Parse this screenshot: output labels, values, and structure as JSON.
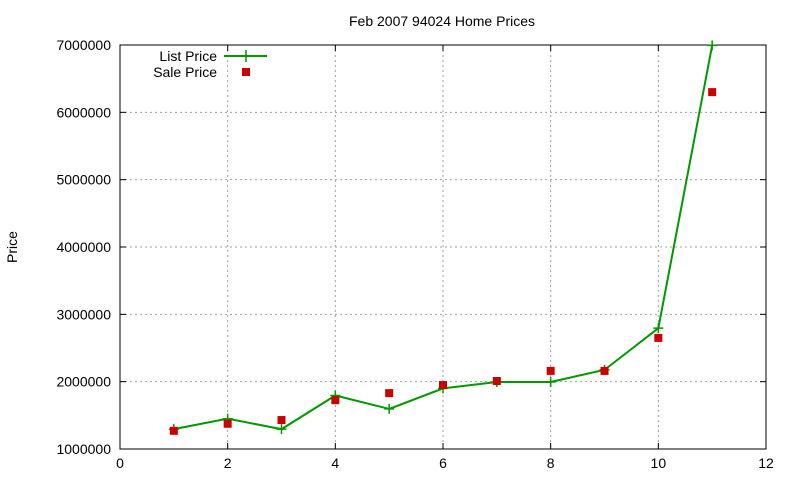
{
  "chart_data": {
    "type": "line",
    "title": "Feb 2007 94024 Home Prices",
    "xlabel": "",
    "ylabel": "Price",
    "xlim": [
      0,
      12
    ],
    "ylim": [
      1000000,
      7000000
    ],
    "xticks": [
      0,
      2,
      4,
      6,
      8,
      10,
      12
    ],
    "yticks": [
      1000000,
      2000000,
      3000000,
      4000000,
      5000000,
      6000000,
      7000000
    ],
    "grid": true,
    "legend_position": "top-left",
    "series": [
      {
        "name": "List Price",
        "style": "line-with-plus-markers",
        "color": "#009900",
        "x": [
          1,
          2,
          3,
          4,
          5,
          6,
          7,
          8,
          9,
          10,
          11
        ],
        "y": [
          1295000,
          1450000,
          1295000,
          1795000,
          1595000,
          1900000,
          1995000,
          1995000,
          2175000,
          2795000,
          6995000
        ]
      },
      {
        "name": "Sale Price",
        "style": "square-markers",
        "color": "#cc0000",
        "x": [
          1,
          2,
          3,
          4,
          5,
          6,
          7,
          8,
          9,
          10,
          11
        ],
        "y": [
          1270000,
          1375000,
          1430000,
          1725000,
          1830000,
          1950000,
          2010000,
          2160000,
          2160000,
          2650000,
          6300000
        ]
      }
    ]
  }
}
